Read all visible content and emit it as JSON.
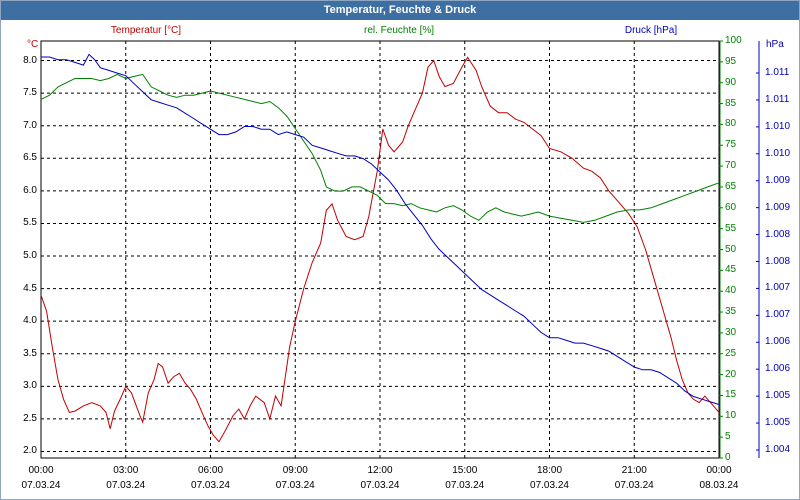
{
  "window": {
    "title": "Temperatur, Feuchte & Druck"
  },
  "chart_data": {
    "type": "line",
    "title": "Temperatur, Feuchte & Druck",
    "colors": {
      "temperature": "#c00000",
      "humidity": "#008000",
      "pressure": "#0000c0",
      "grid": "#000000"
    },
    "x": {
      "unit": "hours since 07.03.24 00:00",
      "range": [
        0,
        24
      ],
      "ticks": [
        {
          "hour": 0,
          "time": "00:00",
          "date": "07.03.24"
        },
        {
          "hour": 3,
          "time": "03:00",
          "date": "07.03.24"
        },
        {
          "hour": 6,
          "time": "06:00",
          "date": "07.03.24"
        },
        {
          "hour": 9,
          "time": "09:00",
          "date": "07.03.24"
        },
        {
          "hour": 12,
          "time": "12:00",
          "date": "07.03.24"
        },
        {
          "hour": 15,
          "time": "15:00",
          "date": "07.03.24"
        },
        {
          "hour": 18,
          "time": "18:00",
          "date": "07.03.24"
        },
        {
          "hour": 21,
          "time": "21:00",
          "date": "07.03.24"
        },
        {
          "hour": 24,
          "time": "00:00",
          "date": "08.03.24"
        }
      ]
    },
    "axes": {
      "temperature": {
        "label": "Temperatur [°C]",
        "unit": "°C",
        "range": [
          1.9,
          8.3
        ],
        "ticks": [
          "8.0",
          "7.5",
          "7.0",
          "6.5",
          "6.0",
          "5.5",
          "5.0",
          "4.5",
          "4.0",
          "3.5",
          "3.0",
          "2.5",
          "2.0"
        ]
      },
      "humidity": {
        "label": "rel. Feuchte [%]",
        "unit": "%",
        "range": [
          0,
          100
        ],
        "ticks": [
          "100",
          "95",
          "90",
          "85",
          "80",
          "75",
          "70",
          "65",
          "60",
          "55",
          "50",
          "45",
          "40",
          "35",
          "30",
          "25",
          "20",
          "15",
          "10",
          "5",
          "0"
        ]
      },
      "pressure": {
        "label": "Druck [hPa]",
        "unit": "hPa",
        "range": [
          1003.7,
          1011.5
        ],
        "ticks": [
          "1.011",
          "1.011",
          "1.010",
          "1.010",
          "1.009",
          "1.009",
          "1.008",
          "1.008",
          "1.007",
          "1.007",
          "1.006",
          "1.006",
          "1.005",
          "1.005",
          "1.004"
        ]
      }
    },
    "series": [
      {
        "name": "Temperatur [°C]",
        "axis": "temperature",
        "points": [
          [
            0,
            4.4
          ],
          [
            0.2,
            4.15
          ],
          [
            0.4,
            3.6
          ],
          [
            0.6,
            3.1
          ],
          [
            0.8,
            2.8
          ],
          [
            1.0,
            2.6
          ],
          [
            1.2,
            2.62
          ],
          [
            1.5,
            2.7
          ],
          [
            1.8,
            2.75
          ],
          [
            2.1,
            2.7
          ],
          [
            2.3,
            2.6
          ],
          [
            2.45,
            2.35
          ],
          [
            2.6,
            2.62
          ],
          [
            2.8,
            2.8
          ],
          [
            3.0,
            3.0
          ],
          [
            3.2,
            2.9
          ],
          [
            3.5,
            2.55
          ],
          [
            3.6,
            2.45
          ],
          [
            3.8,
            2.9
          ],
          [
            4.0,
            3.1
          ],
          [
            4.15,
            3.35
          ],
          [
            4.3,
            3.3
          ],
          [
            4.5,
            3.05
          ],
          [
            4.7,
            3.15
          ],
          [
            4.9,
            3.2
          ],
          [
            5.1,
            3.05
          ],
          [
            5.3,
            2.95
          ],
          [
            5.5,
            2.8
          ],
          [
            5.7,
            2.6
          ],
          [
            5.9,
            2.4
          ],
          [
            6.1,
            2.25
          ],
          [
            6.3,
            2.15
          ],
          [
            6.5,
            2.3
          ],
          [
            6.8,
            2.55
          ],
          [
            7.0,
            2.65
          ],
          [
            7.2,
            2.5
          ],
          [
            7.4,
            2.7
          ],
          [
            7.6,
            2.85
          ],
          [
            7.9,
            2.75
          ],
          [
            8.1,
            2.5
          ],
          [
            8.3,
            2.85
          ],
          [
            8.5,
            2.7
          ],
          [
            8.8,
            3.6
          ],
          [
            9.0,
            4.0
          ],
          [
            9.3,
            4.5
          ],
          [
            9.6,
            4.9
          ],
          [
            9.9,
            5.2
          ],
          [
            10.1,
            5.7
          ],
          [
            10.3,
            5.8
          ],
          [
            10.5,
            5.55
          ],
          [
            10.8,
            5.3
          ],
          [
            11.1,
            5.25
          ],
          [
            11.4,
            5.3
          ],
          [
            11.6,
            5.6
          ],
          [
            11.9,
            6.3
          ],
          [
            12.1,
            6.95
          ],
          [
            12.3,
            6.7
          ],
          [
            12.5,
            6.6
          ],
          [
            12.8,
            6.75
          ],
          [
            13.0,
            7.0
          ],
          [
            13.2,
            7.2
          ],
          [
            13.5,
            7.5
          ],
          [
            13.7,
            7.9
          ],
          [
            13.9,
            8.0
          ],
          [
            14.1,
            7.75
          ],
          [
            14.3,
            7.6
          ],
          [
            14.6,
            7.65
          ],
          [
            14.9,
            7.9
          ],
          [
            15.1,
            8.05
          ],
          [
            15.4,
            7.85
          ],
          [
            15.6,
            7.6
          ],
          [
            15.9,
            7.3
          ],
          [
            16.2,
            7.2
          ],
          [
            16.5,
            7.2
          ],
          [
            16.8,
            7.1
          ],
          [
            17.1,
            7.05
          ],
          [
            17.4,
            6.95
          ],
          [
            17.7,
            6.85
          ],
          [
            18.0,
            6.65
          ],
          [
            18.4,
            6.6
          ],
          [
            18.8,
            6.5
          ],
          [
            19.2,
            6.35
          ],
          [
            19.5,
            6.3
          ],
          [
            19.8,
            6.2
          ],
          [
            20.1,
            6.0
          ],
          [
            20.4,
            5.85
          ],
          [
            20.8,
            5.65
          ],
          [
            21.1,
            5.45
          ],
          [
            21.4,
            5.1
          ],
          [
            21.7,
            4.65
          ],
          [
            22.0,
            4.2
          ],
          [
            22.3,
            3.75
          ],
          [
            22.5,
            3.4
          ],
          [
            22.7,
            3.1
          ],
          [
            22.9,
            2.9
          ],
          [
            23.1,
            2.8
          ],
          [
            23.3,
            2.75
          ],
          [
            23.5,
            2.85
          ],
          [
            23.7,
            2.75
          ],
          [
            23.9,
            2.65
          ],
          [
            24.0,
            2.6
          ]
        ]
      },
      {
        "name": "rel. Feuchte [%]",
        "axis": "humidity",
        "points": [
          [
            0,
            86
          ],
          [
            0.3,
            87
          ],
          [
            0.6,
            89
          ],
          [
            0.9,
            90
          ],
          [
            1.2,
            91
          ],
          [
            1.5,
            91
          ],
          [
            1.8,
            91
          ],
          [
            2.1,
            90.5
          ],
          [
            2.4,
            91
          ],
          [
            2.7,
            92
          ],
          [
            3.0,
            91
          ],
          [
            3.3,
            91.5
          ],
          [
            3.6,
            92
          ],
          [
            3.9,
            89
          ],
          [
            4.2,
            88
          ],
          [
            4.5,
            87
          ],
          [
            4.8,
            86.5
          ],
          [
            5.1,
            87
          ],
          [
            5.4,
            87
          ],
          [
            5.7,
            87.5
          ],
          [
            6.0,
            88
          ],
          [
            6.3,
            87.5
          ],
          [
            6.6,
            87
          ],
          [
            6.9,
            86.5
          ],
          [
            7.2,
            86
          ],
          [
            7.5,
            85.5
          ],
          [
            7.8,
            85
          ],
          [
            8.1,
            85.5
          ],
          [
            8.4,
            84
          ],
          [
            8.7,
            82
          ],
          [
            9.0,
            79
          ],
          [
            9.3,
            76
          ],
          [
            9.6,
            73
          ],
          [
            9.9,
            69
          ],
          [
            10.1,
            65
          ],
          [
            10.4,
            64
          ],
          [
            10.7,
            64
          ],
          [
            11.0,
            65
          ],
          [
            11.3,
            65
          ],
          [
            11.6,
            64
          ],
          [
            11.9,
            63
          ],
          [
            12.2,
            61
          ],
          [
            12.5,
            61
          ],
          [
            12.8,
            60.5
          ],
          [
            13.1,
            61
          ],
          [
            13.4,
            60
          ],
          [
            13.7,
            59.5
          ],
          [
            14.0,
            59
          ],
          [
            14.3,
            60
          ],
          [
            14.6,
            60.5
          ],
          [
            14.9,
            59.5
          ],
          [
            15.2,
            58
          ],
          [
            15.5,
            57
          ],
          [
            15.8,
            59
          ],
          [
            16.1,
            60
          ],
          [
            16.4,
            59
          ],
          [
            16.7,
            58.5
          ],
          [
            17.0,
            58
          ],
          [
            17.3,
            58.5
          ],
          [
            17.6,
            59
          ],
          [
            18.0,
            58
          ],
          [
            18.4,
            57.5
          ],
          [
            18.8,
            57
          ],
          [
            19.2,
            56.5
          ],
          [
            19.6,
            57
          ],
          [
            20.0,
            58
          ],
          [
            20.4,
            59
          ],
          [
            20.8,
            59.5
          ],
          [
            21.2,
            59.5
          ],
          [
            21.6,
            60
          ],
          [
            22.0,
            61
          ],
          [
            22.4,
            62
          ],
          [
            22.8,
            63
          ],
          [
            23.2,
            64
          ],
          [
            23.6,
            65
          ],
          [
            24.0,
            66
          ]
        ]
      },
      {
        "name": "Druck [hPa]",
        "axis": "pressure",
        "points": [
          [
            0,
            1011.2
          ],
          [
            0.3,
            1011.2
          ],
          [
            0.6,
            1011.15
          ],
          [
            0.9,
            1011.15
          ],
          [
            1.2,
            1011.1
          ],
          [
            1.5,
            1011.05
          ],
          [
            1.7,
            1011.25
          ],
          [
            1.9,
            1011.15
          ],
          [
            2.1,
            1011.0
          ],
          [
            2.4,
            1010.95
          ],
          [
            2.7,
            1010.9
          ],
          [
            3.0,
            1010.85
          ],
          [
            3.3,
            1010.7
          ],
          [
            3.6,
            1010.55
          ],
          [
            3.9,
            1010.4
          ],
          [
            4.2,
            1010.35
          ],
          [
            4.5,
            1010.3
          ],
          [
            4.8,
            1010.25
          ],
          [
            5.1,
            1010.15
          ],
          [
            5.4,
            1010.05
          ],
          [
            5.7,
            1009.95
          ],
          [
            6.0,
            1009.85
          ],
          [
            6.3,
            1009.75
          ],
          [
            6.6,
            1009.75
          ],
          [
            6.9,
            1009.8
          ],
          [
            7.2,
            1009.9
          ],
          [
            7.5,
            1009.9
          ],
          [
            7.8,
            1009.85
          ],
          [
            8.1,
            1009.85
          ],
          [
            8.4,
            1009.75
          ],
          [
            8.7,
            1009.8
          ],
          [
            9.0,
            1009.75
          ],
          [
            9.3,
            1009.7
          ],
          [
            9.6,
            1009.55
          ],
          [
            9.9,
            1009.5
          ],
          [
            10.2,
            1009.45
          ],
          [
            10.5,
            1009.4
          ],
          [
            10.8,
            1009.35
          ],
          [
            11.1,
            1009.35
          ],
          [
            11.4,
            1009.3
          ],
          [
            11.7,
            1009.2
          ],
          [
            12.0,
            1009.05
          ],
          [
            12.3,
            1008.9
          ],
          [
            12.6,
            1008.7
          ],
          [
            12.9,
            1008.45
          ],
          [
            13.2,
            1008.25
          ],
          [
            13.5,
            1008.05
          ],
          [
            13.8,
            1007.8
          ],
          [
            14.1,
            1007.6
          ],
          [
            14.4,
            1007.45
          ],
          [
            14.7,
            1007.3
          ],
          [
            15.0,
            1007.15
          ],
          [
            15.3,
            1007.0
          ],
          [
            15.6,
            1006.85
          ],
          [
            15.9,
            1006.75
          ],
          [
            16.2,
            1006.65
          ],
          [
            16.5,
            1006.55
          ],
          [
            16.8,
            1006.45
          ],
          [
            17.1,
            1006.35
          ],
          [
            17.4,
            1006.2
          ],
          [
            17.7,
            1006.05
          ],
          [
            18.0,
            1005.95
          ],
          [
            18.3,
            1005.95
          ],
          [
            18.6,
            1005.9
          ],
          [
            18.9,
            1005.85
          ],
          [
            19.2,
            1005.85
          ],
          [
            19.5,
            1005.8
          ],
          [
            19.8,
            1005.75
          ],
          [
            20.1,
            1005.7
          ],
          [
            20.4,
            1005.6
          ],
          [
            20.7,
            1005.5
          ],
          [
            21.0,
            1005.4
          ],
          [
            21.3,
            1005.35
          ],
          [
            21.6,
            1005.35
          ],
          [
            21.9,
            1005.3
          ],
          [
            22.2,
            1005.2
          ],
          [
            22.5,
            1005.1
          ],
          [
            22.8,
            1004.95
          ],
          [
            23.1,
            1004.85
          ],
          [
            23.4,
            1004.8
          ],
          [
            23.7,
            1004.75
          ],
          [
            24.0,
            1004.7
          ]
        ]
      }
    ]
  }
}
